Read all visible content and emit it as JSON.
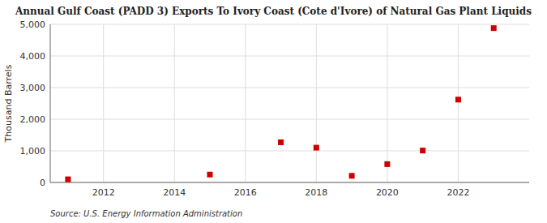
{
  "chart_data": {
    "type": "scatter",
    "title": "Annual Gulf Coast (PADD 3) Exports To Ivory Coast (Cote d'Ivore) of Natural Gas Plant Liquids",
    "ylabel": "Thousand Barrels",
    "annotation": "Source: U.S. Energy Information Administration",
    "x": [
      2011,
      2015,
      2017,
      2018,
      2019,
      2020,
      2021,
      2022,
      2023
    ],
    "values": [
      100,
      250,
      1270,
      1100,
      210,
      580,
      1010,
      2620,
      4880
    ],
    "color": "#cc0000",
    "marker": "square",
    "xlim": [
      2010.5,
      2024
    ],
    "ylim": [
      0,
      5000
    ],
    "xticks": [
      2012,
      2014,
      2016,
      2018,
      2020,
      2022
    ],
    "yticks": [
      0,
      {
        "value": 1000,
        "label": "1,000"
      },
      {
        "value": 2000,
        "label": "2,000"
      },
      {
        "value": 3000,
        "label": "3,000"
      },
      {
        "value": 4000,
        "label": "4,000"
      },
      {
        "value": 5000,
        "label": "5,000"
      }
    ],
    "grid": true
  }
}
